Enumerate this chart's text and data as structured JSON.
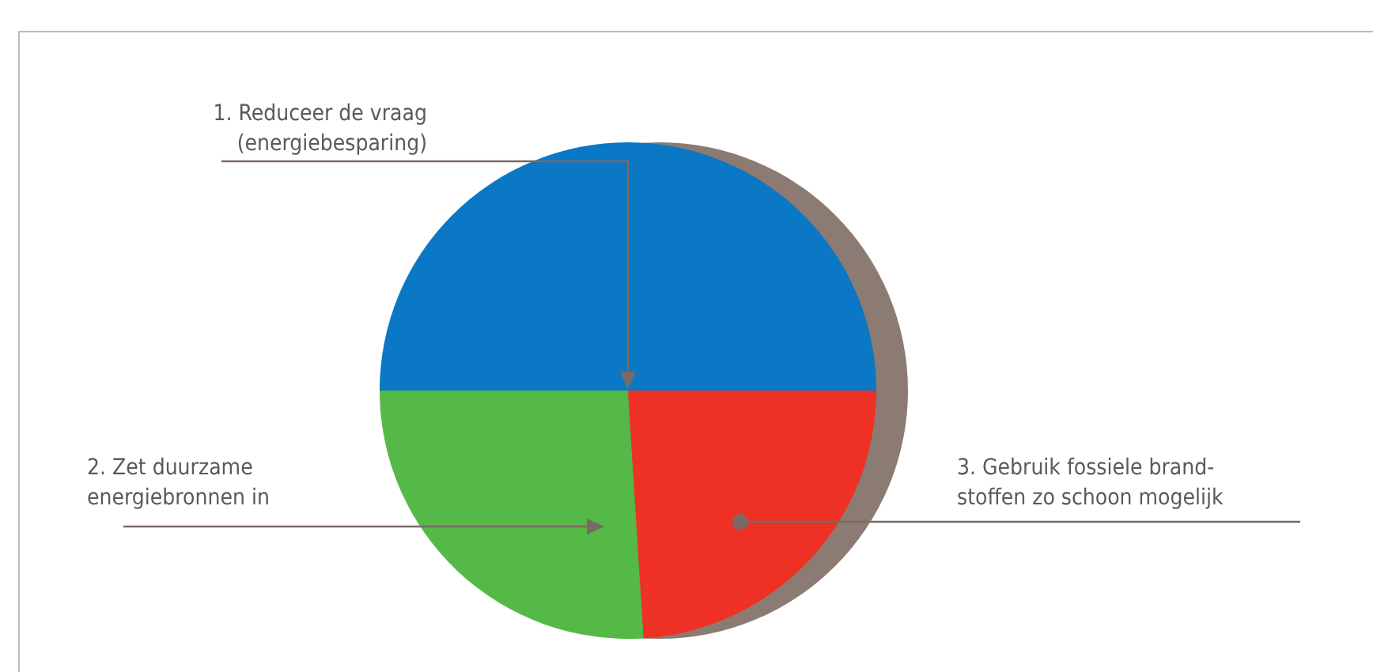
{
  "chart_data": {
    "type": "pie",
    "categories": [
      "1. Reduceer de vraag\n(energiebesparing)",
      "2. Zet duurzame\nenergiebronnen in",
      "3. Gebruik fossiele brand-\nstoffen zo schoon mogelijk"
    ],
    "values": [
      50,
      26,
      24
    ],
    "colors": [
      "#0a78c4",
      "#55b948",
      "#ee3124"
    ]
  }
}
